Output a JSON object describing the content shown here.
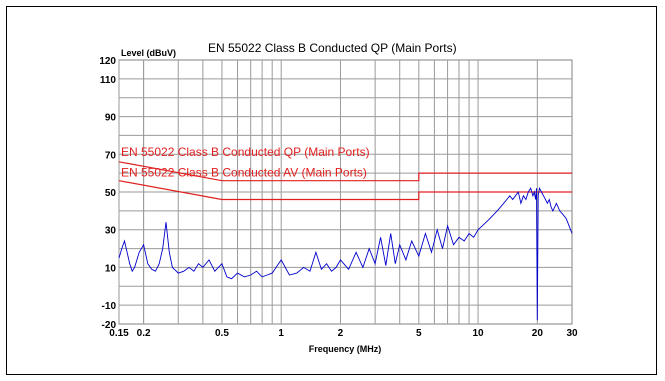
{
  "chart_data": {
    "type": "line",
    "title": "EN 55022 Class B Conducted QP (Main Ports)",
    "ylabel": "Level (dBuV)",
    "xlabel": "Frequency (MHz)",
    "xscale": "log",
    "xlim": [
      0.15,
      30
    ],
    "ylim": [
      -20,
      120
    ],
    "grid": true,
    "x_tick_labels": [
      {
        "value": 0.15,
        "label": "0.15"
      },
      {
        "value": 0.2,
        "label": "0.2"
      },
      {
        "value": 0.5,
        "label": "0.5"
      },
      {
        "value": 1,
        "label": "1"
      },
      {
        "value": 2,
        "label": "2"
      },
      {
        "value": 5,
        "label": "5"
      },
      {
        "value": 10,
        "label": "10"
      },
      {
        "value": 20,
        "label": "20"
      },
      {
        "value": 30,
        "label": "30"
      }
    ],
    "y_tick_labels": [
      {
        "value": 120,
        "label": "120"
      },
      {
        "value": 110,
        "label": "110"
      },
      {
        "value": 90,
        "label": "90"
      },
      {
        "value": 70,
        "label": "70"
      },
      {
        "value": 50,
        "label": "50"
      },
      {
        "value": 30,
        "label": "30"
      },
      {
        "value": 10,
        "label": "10"
      },
      {
        "value": -10,
        "label": "-10"
      },
      {
        "value": -20,
        "label": "-20"
      }
    ],
    "limit_lines": [
      {
        "name": "EN 55022 Class B Conducted QP (Main Ports)",
        "color": "#e02020",
        "points": [
          [
            0.15,
            66
          ],
          [
            0.5,
            56
          ],
          [
            5,
            56
          ],
          [
            5,
            60
          ],
          [
            30,
            60
          ]
        ]
      },
      {
        "name": "EN 55022 Class B Conducted AV (Main Ports)",
        "color": "#e02020",
        "points": [
          [
            0.15,
            56
          ],
          [
            0.5,
            46
          ],
          [
            5,
            46
          ],
          [
            5,
            50
          ],
          [
            30,
            50
          ]
        ]
      }
    ],
    "series": [
      {
        "color": "#0000cc",
        "x": [
          0.15,
          0.155,
          0.16,
          0.165,
          0.17,
          0.175,
          0.18,
          0.19,
          0.2,
          0.21,
          0.22,
          0.23,
          0.24,
          0.25,
          0.26,
          0.27,
          0.28,
          0.3,
          0.32,
          0.34,
          0.36,
          0.38,
          0.4,
          0.43,
          0.46,
          0.5,
          0.53,
          0.56,
          0.6,
          0.65,
          0.7,
          0.75,
          0.8,
          0.85,
          0.9,
          1.0,
          1.1,
          1.2,
          1.3,
          1.4,
          1.5,
          1.6,
          1.7,
          1.8,
          1.9,
          2.0,
          2.2,
          2.4,
          2.6,
          2.8,
          3.0,
          3.2,
          3.4,
          3.6,
          3.8,
          4.0,
          4.3,
          4.6,
          5.0,
          5.4,
          5.8,
          6.2,
          6.6,
          7.0,
          7.5,
          8.0,
          8.5,
          9.0,
          9.5,
          10,
          10.5,
          11,
          11.5,
          12,
          12.5,
          13,
          13.5,
          14,
          14.5,
          15,
          15.5,
          16,
          16.5,
          17,
          17.5,
          18,
          18.5,
          19,
          19.3,
          19.6,
          19.8,
          20.0,
          20.2,
          20.5,
          21,
          21.5,
          22,
          22.5,
          23,
          23.5,
          24,
          25,
          26,
          27,
          28,
          29,
          30
        ],
        "y": [
          15,
          20,
          24,
          18,
          12,
          8,
          10,
          18,
          22,
          12,
          9,
          8,
          12,
          20,
          34,
          18,
          10,
          7,
          8,
          10,
          8,
          12,
          10,
          14,
          8,
          12,
          5,
          4,
          7,
          5,
          6,
          8,
          5,
          6,
          7,
          14,
          6,
          7,
          10,
          8,
          18,
          9,
          12,
          8,
          10,
          14,
          9,
          18,
          10,
          20,
          12,
          26,
          11,
          28,
          12,
          22,
          14,
          24,
          16,
          28,
          18,
          30,
          20,
          32,
          22,
          26,
          24,
          28,
          26,
          30,
          32,
          34,
          36,
          38,
          40,
          42,
          44,
          46,
          48,
          46,
          48,
          50,
          44,
          48,
          46,
          50,
          52,
          48,
          50,
          46,
          52,
          -18,
          48,
          52,
          50,
          48,
          46,
          44,
          46,
          42,
          40,
          44,
          40,
          38,
          36,
          32,
          28
        ]
      }
    ]
  }
}
